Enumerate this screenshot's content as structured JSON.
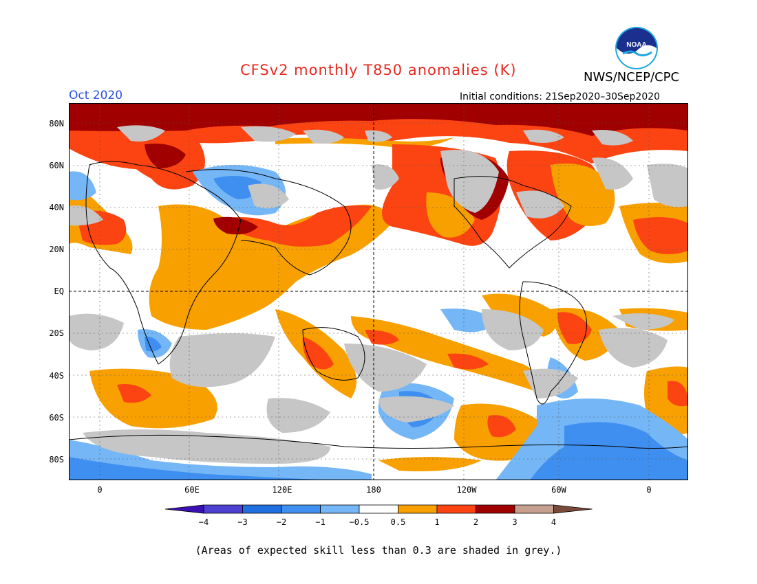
{
  "header": {
    "title": "CFSv2 monthly T850 anomalies (K)",
    "agency": "NWS/NCEP/CPC",
    "logo_text": "NOAA",
    "period": "Oct 2020",
    "initial_conditions": "Initial conditions: 21Sep2020–30Sep2020"
  },
  "map": {
    "projection": "cylindrical equidistant",
    "lat_labels": [
      "80N",
      "60N",
      "40N",
      "20N",
      "EQ",
      "20S",
      "40S",
      "60S",
      "80S"
    ],
    "lon_labels": [
      "0",
      "60E",
      "120E",
      "180",
      "120W",
      "60W",
      "0"
    ],
    "dashed_reference_lines": [
      "EQ",
      "180"
    ],
    "grid": "dotted"
  },
  "colorbar": {
    "tick_labels": [
      "−4",
      "−3",
      "−2",
      "−1",
      "−0.5",
      "0.5",
      "1",
      "2",
      "3",
      "4"
    ],
    "colors": [
      "#3a0fb4",
      "#4d3fd2",
      "#1f6fe0",
      "#3f8ff0",
      "#74b6f6",
      "#ffffff",
      "#f8a000",
      "#fb4412",
      "#a00000",
      "#c79f8f",
      "#7a4a3a"
    ]
  },
  "legend_note": "(Areas of expected skill less than 0.3 are shaded in grey.)",
  "colors": {
    "title": "#e8281e",
    "period": "#2b50e0",
    "skill_grey": "#c6c6c6"
  }
}
